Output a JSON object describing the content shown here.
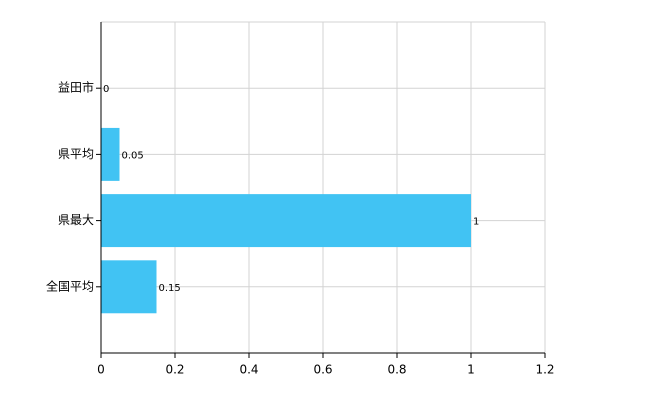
{
  "chart_data": {
    "type": "bar",
    "orientation": "horizontal",
    "categories": [
      "益田市",
      "県平均",
      "県最大",
      "全国平均"
    ],
    "values": [
      0,
      0.05,
      1,
      0.15
    ],
    "color": "#41c3f3",
    "xlim": [
      0,
      1.2
    ],
    "xticks": [
      0,
      0.2,
      0.4,
      0.6,
      0.8,
      1,
      1.2
    ],
    "grid": true
  }
}
